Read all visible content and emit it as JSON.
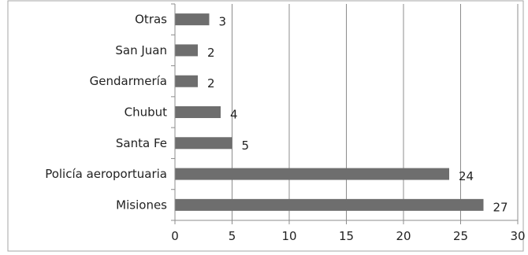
{
  "chart_data": {
    "type": "bar",
    "orientation": "horizontal",
    "categories": [
      "Misiones",
      "Policía aeroportuaria",
      "Santa Fe",
      "Chubut",
      "Gendarmería",
      "San Juan",
      "Otras"
    ],
    "values": [
      27,
      24,
      5,
      4,
      2,
      2,
      3
    ],
    "data_labels": [
      "27",
      "24",
      "5",
      "4",
      "2",
      "2",
      "3"
    ],
    "x_ticks": [
      "0",
      "5",
      "10",
      "15",
      "20",
      "25",
      "30"
    ],
    "xlim": [
      0,
      30
    ],
    "grid": true,
    "legend": "none",
    "colors": {
      "bar": "#6e6e6e",
      "grid": "#8c8c8c",
      "frame": "#a6a6a6",
      "text": "#222222"
    }
  }
}
